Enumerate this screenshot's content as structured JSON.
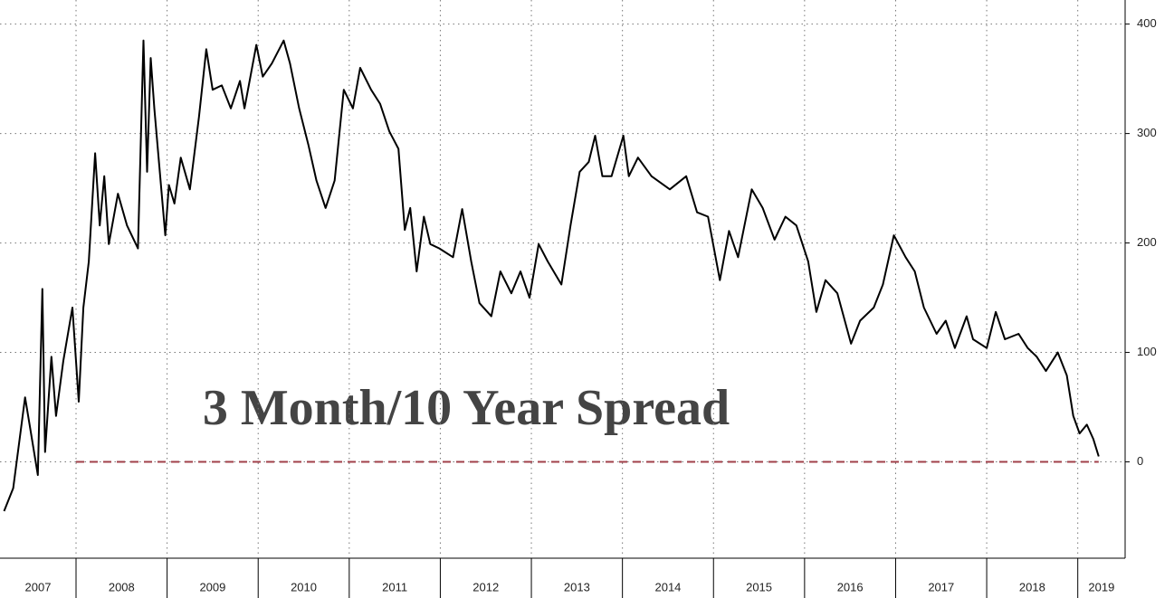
{
  "chart_data": {
    "type": "line",
    "annotation": "3 Month/10 Year Spread",
    "x_labels": [
      "2007",
      "2008",
      "2009",
      "2010",
      "2011",
      "2012",
      "2013",
      "2014",
      "2015",
      "2016",
      "2017",
      "2018",
      "2019"
    ],
    "xlim": [
      2007.165,
      2019.52
    ],
    "xticks": [
      2008,
      2009,
      2010,
      2011,
      2012,
      2013,
      2014,
      2015,
      2016,
      2017,
      2018,
      2019
    ],
    "ylim": [
      -88,
      422
    ],
    "yticks": [
      0,
      100,
      200,
      300,
      400
    ],
    "grid": true,
    "reference_line": 0,
    "reference_color": "#a0404a",
    "series": [
      {
        "color": "#000000",
        "x": [
          2007.21,
          2007.31,
          2007.44,
          2007.49,
          2007.58,
          2007.63,
          2007.66,
          2007.73,
          2007.78,
          2007.86,
          2007.96,
          2008.03,
          2008.08,
          2008.14,
          2008.21,
          2008.26,
          2008.31,
          2008.36,
          2008.46,
          2008.56,
          2008.68,
          2008.74,
          2008.78,
          2008.82,
          2008.86,
          2008.98,
          2009.02,
          2009.08,
          2009.15,
          2009.25,
          2009.35,
          2009.43,
          2009.5,
          2009.6,
          2009.7,
          2009.8,
          2009.85,
          2009.98,
          2010.05,
          2010.15,
          2010.28,
          2010.35,
          2010.45,
          2010.55,
          2010.64,
          2010.74,
          2010.84,
          2010.94,
          2011.04,
          2011.12,
          2011.24,
          2011.34,
          2011.44,
          2011.54,
          2011.61,
          2011.67,
          2011.74,
          2011.82,
          2011.89,
          2011.99,
          2012.14,
          2012.24,
          2012.34,
          2012.43,
          2012.56,
          2012.66,
          2012.78,
          2012.88,
          2012.98,
          2013.08,
          2013.18,
          2013.33,
          2013.43,
          2013.53,
          2013.63,
          2013.7,
          2013.78,
          2013.88,
          2014.01,
          2014.07,
          2014.17,
          2014.32,
          2014.52,
          2014.7,
          2014.82,
          2014.94,
          2015.07,
          2015.17,
          2015.27,
          2015.42,
          2015.54,
          2015.67,
          2015.79,
          2015.91,
          2016.04,
          2016.13,
          2016.23,
          2016.36,
          2016.51,
          2016.61,
          2016.76,
          2016.86,
          2016.98,
          2017.11,
          2017.21,
          2017.31,
          2017.45,
          2017.55,
          2017.65,
          2017.78,
          2017.85,
          2018.0,
          2018.1,
          2018.2,
          2018.35,
          2018.45,
          2018.55,
          2018.65,
          2018.78,
          2018.88,
          2018.95,
          2019.02,
          2019.1,
          2019.17,
          2019.23
        ],
        "values": [
          -45,
          -24,
          59,
          34,
          -12,
          158,
          9,
          96,
          42,
          92,
          141,
          55,
          141,
          183,
          282,
          216,
          261,
          199,
          245,
          216,
          195,
          385,
          265,
          369,
          323,
          207,
          253,
          236,
          278,
          249,
          315,
          377,
          340,
          344,
          323,
          348,
          323,
          381,
          352,
          364,
          385,
          364,
          323,
          290,
          257,
          232,
          257,
          340,
          323,
          360,
          340,
          327,
          302,
          286,
          212,
          232,
          174,
          224,
          199,
          195,
          187,
          231,
          183,
          145,
          133,
          174,
          154,
          174,
          150,
          199,
          183,
          162,
          216,
          265,
          274,
          298,
          261,
          261,
          298,
          261,
          278,
          261,
          249,
          261,
          228,
          224,
          166,
          211,
          187,
          249,
          232,
          203,
          224,
          216,
          183,
          137,
          166,
          154,
          108,
          129,
          141,
          162,
          207,
          187,
          174,
          141,
          117,
          129,
          104,
          133,
          112,
          104,
          137,
          112,
          117,
          104,
          96,
          83,
          100,
          79,
          42,
          26,
          34,
          21,
          5
        ]
      }
    ]
  }
}
